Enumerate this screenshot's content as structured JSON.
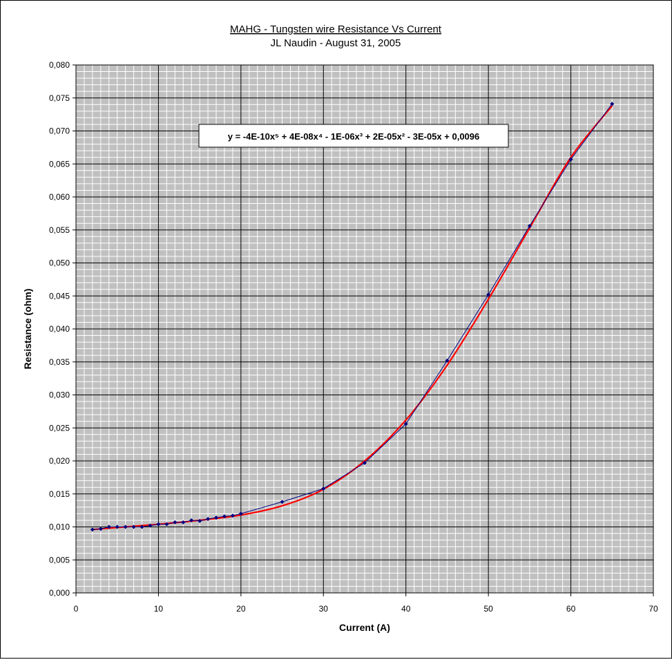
{
  "chart_data": {
    "type": "scatter",
    "title": "MAHG - Tungsten wire Resistance Vs Current",
    "subtitle": "JL Naudin - August 31, 2005",
    "xlabel": "Current (A)",
    "ylabel": "Resistance (ohm)",
    "xlim": [
      0,
      70
    ],
    "ylim": [
      0,
      0.08
    ],
    "x_ticks": [
      "0",
      "10",
      "20",
      "30",
      "40",
      "50",
      "60",
      "70"
    ],
    "y_ticks": [
      "0,000",
      "0,005",
      "0,010",
      "0,015",
      "0,020",
      "0,025",
      "0,030",
      "0,035",
      "0,040",
      "0,045",
      "0,050",
      "0,055",
      "0,060",
      "0,065",
      "0,070",
      "0,075",
      "0,080"
    ],
    "grid": true,
    "legend": "none",
    "colors": {
      "plot_background": "#c0c0c0",
      "data_series": "#000080",
      "trendline": "#ff0000",
      "major_grid": "#000000",
      "minor_grid": "#ffffff"
    },
    "series": [
      {
        "x": [
          2,
          3,
          4,
          5,
          6,
          7,
          8,
          9,
          10,
          11,
          12,
          13,
          14,
          15,
          16,
          17,
          18,
          19,
          20,
          25,
          30,
          35,
          40,
          45,
          50,
          55,
          60,
          65
        ],
        "y": [
          0.0096,
          0.0097,
          0.01,
          0.01,
          0.01,
          0.01,
          0.01,
          0.0102,
          0.0104,
          0.0104,
          0.0107,
          0.0107,
          0.011,
          0.0109,
          0.0112,
          0.0114,
          0.0116,
          0.0117,
          0.012,
          0.0138,
          0.0158,
          0.0197,
          0.0256,
          0.0352,
          0.0452,
          0.0556,
          0.0657,
          0.0741
        ]
      }
    ],
    "trendline": {
      "type": "polynomial",
      "order": 5,
      "equation_text": "y = -4E-10x⁵ + 4E-08x⁴ - 1E-06x³ + 2E-05x² - 3E-05x + 0,0096",
      "x": [
        2,
        5,
        10,
        15,
        20,
        25,
        30,
        35,
        40,
        45,
        50,
        55,
        60,
        65
      ],
      "y": [
        0.0096,
        0.0099,
        0.0104,
        0.011,
        0.0118,
        0.0132,
        0.0157,
        0.02,
        0.0262,
        0.0345,
        0.0445,
        0.0553,
        0.066,
        0.0738
      ]
    }
  }
}
